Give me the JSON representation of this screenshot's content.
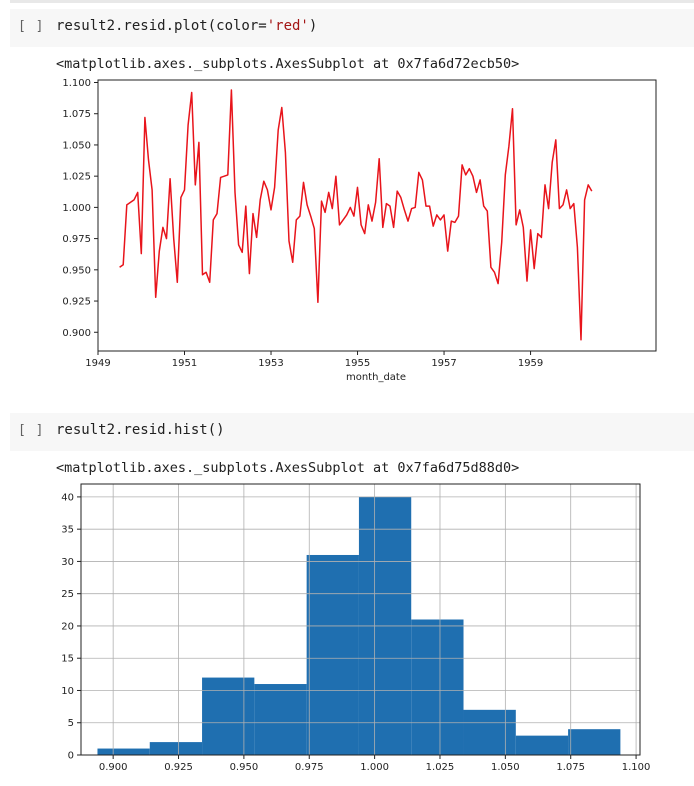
{
  "cells": [
    {
      "bracket": "[ ]",
      "code_prefix": "result2.resid.plot(color=",
      "code_string": "'red'",
      "code_suffix": ")",
      "output_text": "<matplotlib.axes._subplots.AxesSubplot at 0x7fa6d72ecb50>"
    },
    {
      "bracket": "[ ]",
      "code_prefix": "result2.resid.hist()",
      "code_string": "",
      "code_suffix": "",
      "output_text": "<matplotlib.axes._subplots.AxesSubplot at 0x7fa6d75d88d0>"
    }
  ],
  "colors": {
    "line": "#e8141b",
    "bars": "#1f6fb0",
    "cell_bg": "#f7f7f7",
    "string": "#a31515"
  },
  "chart_data": [
    {
      "type": "line",
      "xlabel": "month_date",
      "ylabel": "",
      "xlim": [
        1949,
        1961.9
      ],
      "ylim": [
        0.885,
        1.102
      ],
      "xticks": [
        "1949",
        "1951",
        "1953",
        "1955",
        "1957",
        "1959"
      ],
      "yticks": [
        "0.900",
        "0.925",
        "0.950",
        "0.975",
        "1.000",
        "1.025",
        "1.050",
        "1.075",
        "1.100"
      ],
      "grid": false,
      "color": "red",
      "series": [
        {
          "x_start": 1949.5,
          "x_step": 0.0833333,
          "values": [
            0.952,
            0.954,
            1.002,
            1.004,
            1.006,
            1.012,
            0.963,
            1.072,
            1.038,
            1.014,
            0.928,
            0.965,
            0.984,
            0.975,
            1.023,
            0.975,
            0.94,
            1.008,
            1.014,
            1.066,
            1.092,
            1.018,
            1.052,
            0.946,
            0.948,
            0.94,
            0.99,
            0.995,
            1.024,
            1.025,
            1.026,
            1.094,
            1.012,
            0.97,
            0.964,
            1.001,
            0.947,
            0.995,
            0.976,
            1.006,
            1.021,
            1.014,
            0.998,
            1.016,
            1.062,
            1.08,
            1.044,
            0.973,
            0.956,
            0.99,
            0.993,
            1.02,
            1.002,
            0.993,
            0.983,
            0.924,
            1.005,
            0.996,
            1.012,
            0.999,
            1.025,
            0.986,
            0.99,
            0.994,
            1.0,
            0.993,
            1.016,
            0.986,
            0.979,
            1.002,
            0.989,
            1.004,
            1.039,
            0.984,
            1.003,
            1.001,
            0.984,
            1.013,
            1.008,
            0.998,
            0.989,
            0.999,
            1.0,
            1.028,
            1.022,
            1.001,
            1.001,
            0.985,
            0.994,
            0.99,
            0.994,
            0.965,
            0.989,
            0.988,
            0.993,
            1.034,
            1.026,
            1.031,
            1.025,
            1.012,
            1.022,
            1.001,
            0.997,
            0.952,
            0.948,
            0.939,
            0.972,
            1.026,
            1.049,
            1.079,
            0.986,
            0.998,
            0.984,
            0.941,
            0.982,
            0.951,
            0.979,
            0.976,
            1.018,
            0.999,
            1.036,
            1.054,
            0.999,
            1.002,
            1.014,
            0.999,
            1.003,
            0.968,
            0.894,
            1.006,
            1.018,
            1.013
          ]
        }
      ]
    },
    {
      "type": "bar",
      "title": "",
      "xlabel": "",
      "ylabel": "",
      "xlim": [
        0.8877,
        1.1015
      ],
      "ylim": [
        0,
        42
      ],
      "xticks": [
        "0.900",
        "0.925",
        "0.950",
        "0.975",
        "1.000",
        "1.025",
        "1.050",
        "1.075",
        "1.100"
      ],
      "yticks": [
        "0",
        "5",
        "10",
        "15",
        "20",
        "25",
        "30",
        "35",
        "40"
      ],
      "grid": true,
      "bin_edges": [
        0.894,
        0.914,
        0.934,
        0.954,
        0.974,
        0.994,
        1.014,
        1.034,
        1.054,
        1.074,
        1.094
      ],
      "counts": [
        1,
        2,
        12,
        11,
        31,
        40,
        21,
        7,
        3,
        4
      ]
    }
  ]
}
